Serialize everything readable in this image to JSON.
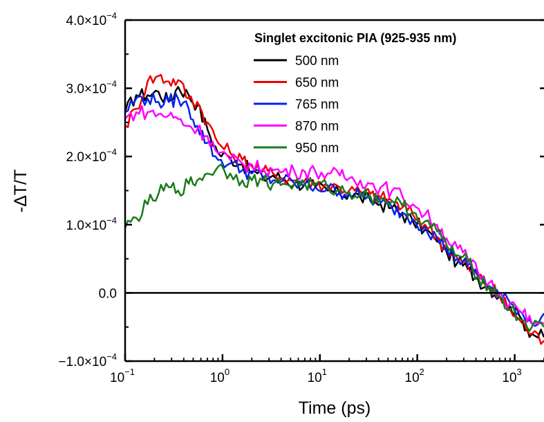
{
  "chart_data": {
    "type": "line",
    "xlabel": "Time (ps)",
    "ylabel": "-ΔT/T",
    "x_scale": "log",
    "xlim": [
      0.1,
      2000
    ],
    "ylim": [
      -0.0001,
      0.0004
    ],
    "x_ticks": [
      {
        "value": 0.1,
        "base": "10",
        "exp": "−1"
      },
      {
        "value": 1,
        "base": "10",
        "exp": "0"
      },
      {
        "value": 10,
        "base": "10",
        "exp": "1"
      },
      {
        "value": 100,
        "base": "10",
        "exp": "2"
      },
      {
        "value": 1000,
        "base": "10",
        "exp": "3"
      }
    ],
    "y_ticks": [
      {
        "value": 0.0004,
        "mant": "4.0×10",
        "exp": "−4"
      },
      {
        "value": 0.0003,
        "mant": "3.0×10",
        "exp": "−4"
      },
      {
        "value": 0.0002,
        "mant": "2.0×10",
        "exp": "−4"
      },
      {
        "value": 0.0001,
        "mant": "1.0×10",
        "exp": "−4"
      },
      {
        "value": 0.0,
        "mant": "0.0",
        "exp": ""
      },
      {
        "value": -0.0001,
        "mant": "−1.0×10",
        "exp": "−4"
      }
    ],
    "legend_title": "Singlet excitonic PIA (925-935 nm)",
    "legend_position": "top-right",
    "zero_line": true,
    "series": [
      {
        "name": "500 nm",
        "color": "#000000",
        "x": [
          0.1,
          0.13,
          0.17,
          0.22,
          0.28,
          0.35,
          0.45,
          0.55,
          0.7,
          0.9,
          1.2,
          1.6,
          2,
          2.6,
          3.3,
          4.2,
          5.5,
          7,
          9,
          12,
          16,
          20,
          26,
          33,
          42,
          55,
          70,
          90,
          120,
          160,
          200,
          260,
          330,
          420,
          550,
          700,
          900,
          1200,
          1500,
          2000
        ],
        "y": [
          0.000265,
          0.00029,
          0.00029,
          0.000295,
          0.00028,
          0.000302,
          0.00029,
          0.000275,
          0.00024,
          0.000205,
          0.000198,
          0.000188,
          0.000178,
          0.000168,
          0.000172,
          0.000168,
          0.00016,
          0.00016,
          0.000155,
          0.00015,
          0.000145,
          0.000145,
          0.00014,
          0.000135,
          0.00013,
          0.000125,
          0.000115,
          0.000105,
          9.25e-05,
          7.5e-05,
          6e-05,
          4.5e-05,
          3.5e-05,
          2e-05,
          7.5e-06,
          -5e-06,
          -2e-05,
          -4e-05,
          -6e-05,
          -6.5e-05
        ]
      },
      {
        "name": "650 nm",
        "color": "#ee0000",
        "x": [
          0.1,
          0.13,
          0.17,
          0.22,
          0.28,
          0.35,
          0.45,
          0.55,
          0.7,
          0.9,
          1.2,
          1.6,
          2,
          2.6,
          3.3,
          4.2,
          5.5,
          7,
          9,
          12,
          16,
          20,
          26,
          33,
          42,
          55,
          70,
          90,
          120,
          160,
          200,
          260,
          330,
          420,
          550,
          700,
          900,
          1200,
          1500,
          2000
        ],
        "y": [
          0.000245,
          0.00027,
          0.00031,
          0.000318,
          0.00031,
          0.000312,
          0.000285,
          0.00028,
          0.00025,
          0.00022,
          0.000205,
          0.000195,
          0.000188,
          0.000178,
          0.000175,
          0.000168,
          0.000165,
          0.000165,
          0.00016,
          0.000158,
          0.000155,
          0.00015,
          0.000148,
          0.000145,
          0.00014,
          0.000135,
          0.000125,
          0.000115,
          0.0001,
          8.2e-05,
          6.5e-05,
          5e-05,
          3.8e-05,
          2.5e-05,
          1e-05,
          -5e-06,
          -2.5e-05,
          -4.5e-05,
          -6e-05,
          -7e-05
        ]
      },
      {
        "name": "765 nm",
        "color": "#0022ee",
        "x": [
          0.1,
          0.13,
          0.17,
          0.22,
          0.28,
          0.35,
          0.45,
          0.55,
          0.7,
          0.9,
          1.2,
          1.6,
          2,
          2.6,
          3.3,
          4.2,
          5.5,
          7,
          9,
          12,
          16,
          20,
          26,
          33,
          42,
          55,
          70,
          90,
          120,
          160,
          200,
          260,
          330,
          420,
          550,
          700,
          900,
          1200,
          1500,
          2000
        ],
        "y": [
          0.000265,
          0.000285,
          0.000285,
          0.00028,
          0.00028,
          0.000285,
          0.00027,
          0.000245,
          0.00022,
          0.000195,
          0.00019,
          0.00018,
          0.000175,
          0.00017,
          0.000165,
          0.000165,
          0.00016,
          0.000158,
          0.000155,
          0.000152,
          0.000148,
          0.000145,
          0.000142,
          0.000138,
          0.000132,
          0.000125,
          0.000118,
          0.000108,
          9.75e-05,
          8e-05,
          6.5e-05,
          5e-05,
          4e-05,
          2.5e-05,
          1e-05,
          -5e-06,
          -1.5e-05,
          -3e-05,
          -4.5e-05,
          -3e-05
        ]
      },
      {
        "name": "870 nm",
        "color": "#ff00ff",
        "x": [
          0.1,
          0.13,
          0.17,
          0.22,
          0.28,
          0.35,
          0.45,
          0.55,
          0.7,
          0.9,
          1.2,
          1.6,
          2,
          2.6,
          3.3,
          4.2,
          5.5,
          7,
          9,
          12,
          16,
          20,
          26,
          33,
          42,
          55,
          70,
          90,
          120,
          160,
          200,
          260,
          330,
          420,
          550,
          700,
          900,
          1200,
          1500,
          2000
        ],
        "y": [
          0.000255,
          0.000265,
          0.000265,
          0.000262,
          0.00026,
          0.000255,
          0.000245,
          0.00024,
          0.00023,
          0.000205,
          0.000195,
          0.00019,
          0.000185,
          0.000182,
          0.00018,
          0.000178,
          0.000178,
          0.000178,
          0.000178,
          0.000175,
          0.000172,
          0.000168,
          0.000165,
          0.00016,
          0.000155,
          0.00015,
          0.000142,
          0.00013,
          0.000115,
          0.0001,
          8e-05,
          6.5e-05,
          5e-05,
          3e-05,
          1.5e-05,
          0.0,
          -1.5e-05,
          -3e-05,
          -4.5e-05,
          -4.5e-05
        ]
      },
      {
        "name": "950 nm",
        "color": "#1a7a1a",
        "x": [
          0.1,
          0.13,
          0.17,
          0.22,
          0.28,
          0.35,
          0.45,
          0.55,
          0.7,
          0.9,
          1.2,
          1.6,
          2,
          2.6,
          3.3,
          4.2,
          5.5,
          7,
          9,
          12,
          16,
          20,
          26,
          33,
          42,
          55,
          70,
          90,
          120,
          160,
          200,
          260,
          330,
          420,
          550,
          700,
          900,
          1200,
          1500,
          2000
        ],
        "y": [
          9.5e-05,
          0.00011,
          0.00013,
          0.000145,
          0.000155,
          0.00015,
          0.00016,
          0.000165,
          0.000175,
          0.000185,
          0.000175,
          0.000165,
          0.000165,
          0.000165,
          0.00016,
          0.00016,
          0.00016,
          0.00016,
          0.000158,
          0.000155,
          0.00015,
          0.000148,
          0.000145,
          0.000142,
          0.000138,
          0.000135,
          0.000128,
          0.000118,
          0.000105,
          9e-05,
          7e-05,
          5.5e-05,
          4.5e-05,
          2.5e-05,
          1e-05,
          -5e-06,
          -2.5e-05,
          -4e-05,
          -5e-05,
          -5e-05
        ]
      }
    ]
  }
}
